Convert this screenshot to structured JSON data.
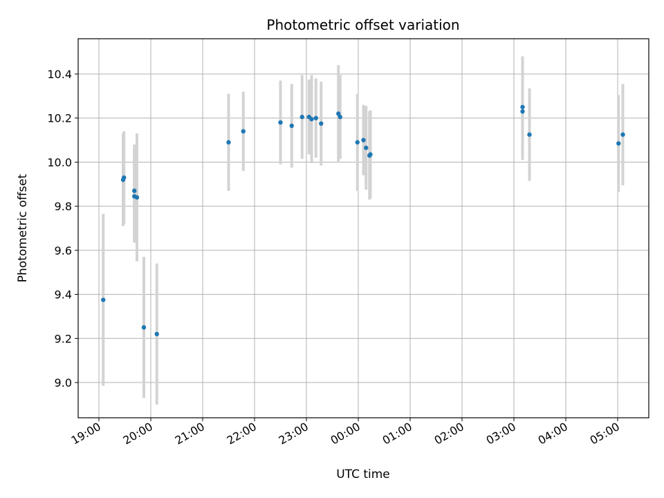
{
  "chart_data": {
    "type": "scatter",
    "title": "Photometric offset variation",
    "xlabel": "UTC time",
    "ylabel": "Photometric offset",
    "x_ticks": [
      "19:00",
      "20:00",
      "21:00",
      "22:00",
      "23:00",
      "00:00",
      "01:00",
      "02:00",
      "03:00",
      "04:00",
      "05:00"
    ],
    "y_ticks": [
      9.0,
      9.2,
      9.4,
      9.6,
      9.8,
      10.0,
      10.2,
      10.4
    ],
    "ylim": [
      8.84,
      10.56
    ],
    "xlim": [
      "18:36",
      "05:36"
    ],
    "grid": true,
    "series": [
      {
        "marker_color": "#1f77b4",
        "errorbar_color": "#d3d3d3",
        "points": [
          {
            "x": "19:05",
            "y": 9.375,
            "err": 0.39
          },
          {
            "x": "19:28",
            "y": 9.92,
            "err": 0.21
          },
          {
            "x": "19:29",
            "y": 9.93,
            "err": 0.21
          },
          {
            "x": "19:41",
            "y": 9.87,
            "err": 0.21
          },
          {
            "x": "19:41",
            "y": 9.845,
            "err": 0.21
          },
          {
            "x": "19:44",
            "y": 9.84,
            "err": 0.29
          },
          {
            "x": "19:52",
            "y": 9.25,
            "err": 0.32
          },
          {
            "x": "20:07",
            "y": 9.22,
            "err": 0.32
          },
          {
            "x": "21:30",
            "y": 10.09,
            "err": 0.22
          },
          {
            "x": "21:47",
            "y": 10.14,
            "err": 0.18
          },
          {
            "x": "22:30",
            "y": 10.18,
            "err": 0.19
          },
          {
            "x": "22:43",
            "y": 10.165,
            "err": 0.19
          },
          {
            "x": "22:55",
            "y": 10.205,
            "err": 0.19
          },
          {
            "x": "23:03",
            "y": 10.205,
            "err": 0.17
          },
          {
            "x": "23:06",
            "y": 10.195,
            "err": 0.2
          },
          {
            "x": "23:11",
            "y": 10.2,
            "err": 0.18
          },
          {
            "x": "23:17",
            "y": 10.175,
            "err": 0.19
          },
          {
            "x": "23:37",
            "y": 10.22,
            "err": 0.22
          },
          {
            "x": "23:39",
            "y": 10.205,
            "err": 0.19
          },
          {
            "x": "23:59",
            "y": 10.09,
            "err": 0.22
          },
          {
            "x": "00:06",
            "y": 10.1,
            "err": 0.16
          },
          {
            "x": "00:09",
            "y": 10.065,
            "err": 0.19
          },
          {
            "x": "00:13",
            "y": 10.03,
            "err": 0.2
          },
          {
            "x": "00:14",
            "y": 10.035,
            "err": 0.2
          },
          {
            "x": "03:10",
            "y": 10.23,
            "err": 0.22
          },
          {
            "x": "03:10",
            "y": 10.25,
            "err": 0.23
          },
          {
            "x": "03:18",
            "y": 10.125,
            "err": 0.21
          },
          {
            "x": "05:01",
            "y": 10.085,
            "err": 0.22
          },
          {
            "x": "05:06",
            "y": 10.125,
            "err": 0.23
          }
        ]
      }
    ]
  }
}
